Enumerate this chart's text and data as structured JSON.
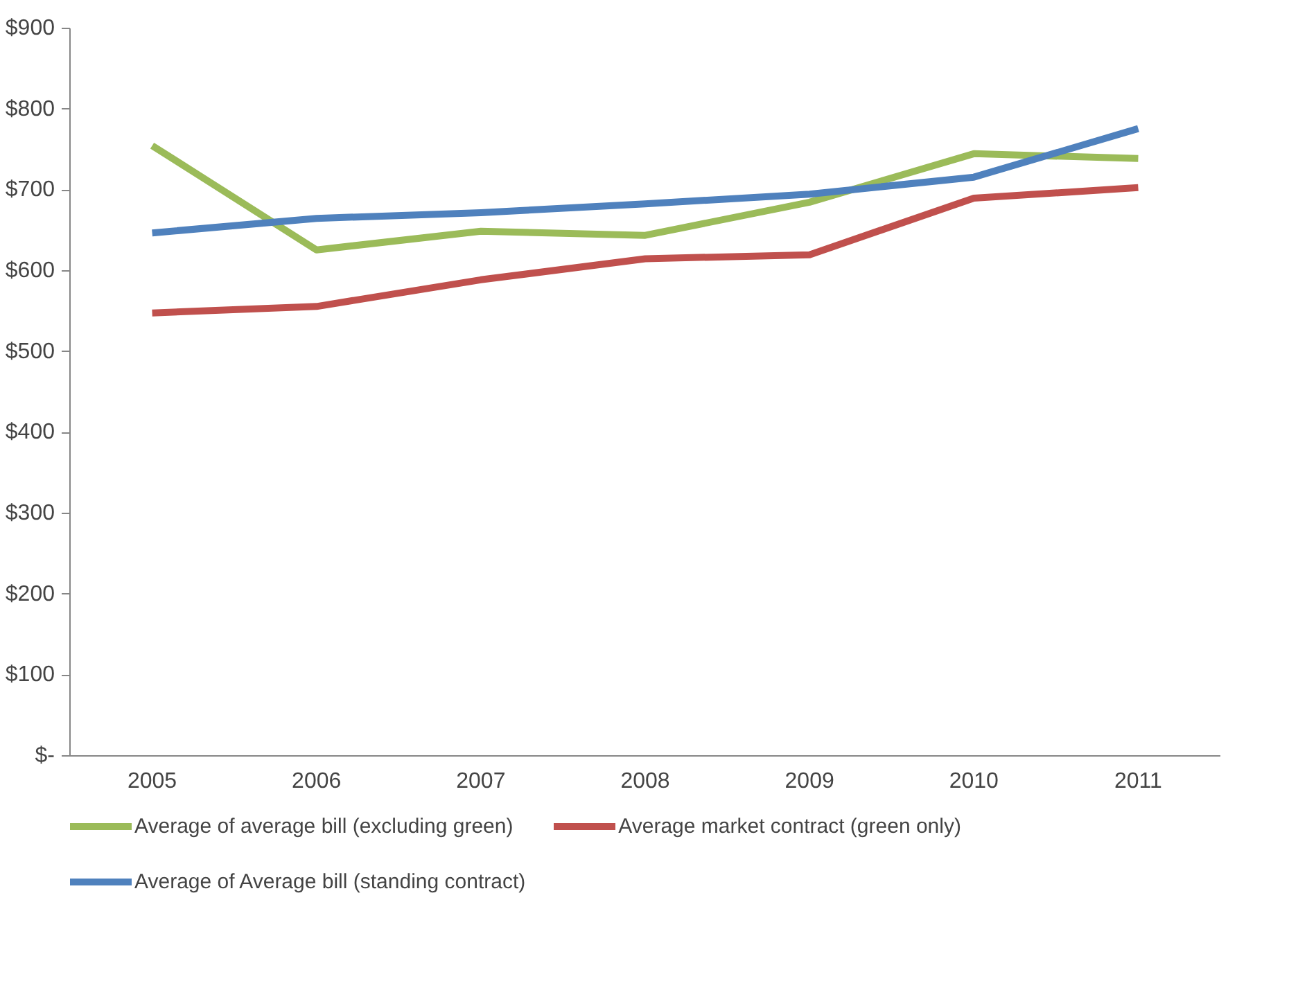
{
  "chart_data": {
    "type": "line",
    "categories": [
      "2005",
      "2006",
      "2007",
      "2008",
      "2009",
      "2010",
      "2011"
    ],
    "series": [
      {
        "name": "Average of average bill (excluding green)",
        "color": "#9bbb59",
        "values": [
          755,
          626,
          649,
          644,
          685,
          745,
          739
        ]
      },
      {
        "name": "Average market contract (green only)",
        "color": "#c0504d",
        "values": [
          548,
          556,
          589,
          615,
          620,
          690,
          703
        ]
      },
      {
        "name": "Average of Average bill (standing contract)",
        "color": "#4f81bd",
        "values": [
          647,
          665,
          672,
          683,
          695,
          716,
          776
        ]
      }
    ],
    "ylim": [
      0,
      900
    ],
    "yticks": [
      {
        "value": 0,
        "label": "$-"
      },
      {
        "value": 100,
        "label": "$100"
      },
      {
        "value": 200,
        "label": "$200"
      },
      {
        "value": 300,
        "label": "$300"
      },
      {
        "value": 400,
        "label": "$400"
      },
      {
        "value": 500,
        "label": "$500"
      },
      {
        "value": 600,
        "label": "$600"
      },
      {
        "value": 700,
        "label": "$700"
      },
      {
        "value": 800,
        "label": "$800"
      },
      {
        "value": 900,
        "label": "$900"
      }
    ],
    "grid": false,
    "legend": "bottom",
    "marker": "none",
    "line_style": "solid"
  }
}
